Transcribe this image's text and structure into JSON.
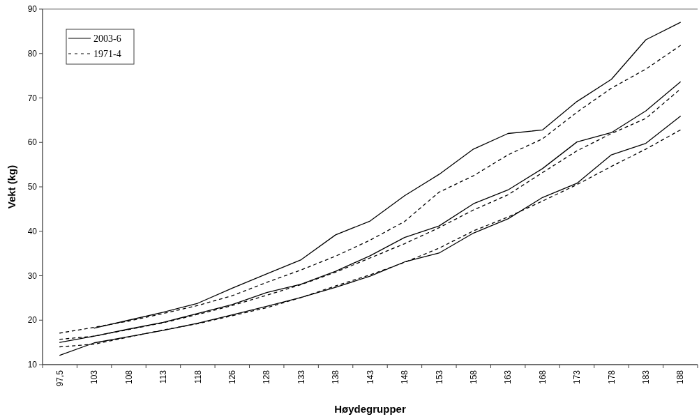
{
  "chart_data": {
    "type": "line",
    "xlabel": "Høydegrupper",
    "ylabel": "Vekt (kg)",
    "categories": [
      "97,5",
      "103",
      "108",
      "113",
      "118",
      "126",
      "128",
      "133",
      "138",
      "143",
      "148",
      "153",
      "158",
      "163",
      "168",
      "173",
      "178",
      "183",
      "188"
    ],
    "ylim": [
      10,
      90
    ],
    "yticks": [
      10,
      20,
      30,
      40,
      50,
      60,
      70,
      80,
      90
    ],
    "grid": false,
    "legend": "top left",
    "series": [
      {
        "name": "2003-6",
        "color": "#000000",
        "line_style": "solid",
        "values": [
          null,
          18.2,
          20,
          21.8,
          23.8,
          27.2,
          30.4,
          33.6,
          39.2,
          42.3,
          48,
          52.8,
          58.5,
          62,
          62.8,
          69.2,
          74.2,
          83.1,
          87
        ]
      },
      {
        "name": "1971-4",
        "color": "#000000",
        "line_style": "dashed",
        "values": [
          17.1,
          18.4,
          19.8,
          21.5,
          23.3,
          25.5,
          28.5,
          31.3,
          34.4,
          38,
          42.2,
          48.8,
          52.5,
          57.2,
          60.8,
          66.8,
          72.2,
          76.5,
          81.8
        ]
      },
      {
        "color": "#000000",
        "line_style": "solid",
        "values": [
          15,
          16.4,
          18,
          19.5,
          21.5,
          23.5,
          26.2,
          28.1,
          31,
          34.5,
          38.6,
          41.2,
          46.2,
          49.3,
          54.1,
          60.1,
          62.2,
          67.1,
          73.6
        ]
      },
      {
        "color": "#000000",
        "line_style": "dashed",
        "values": [
          15.7,
          16.4,
          17.9,
          19.4,
          21.3,
          23.3,
          25.6,
          28,
          30.8,
          34,
          37.2,
          40.8,
          44.8,
          48.2,
          53.2,
          58.1,
          62,
          65.4,
          72
        ]
      },
      {
        "color": "#000000",
        "line_style": "solid",
        "values": [
          12.1,
          14.9,
          16.3,
          17.7,
          19.3,
          21.2,
          23.1,
          25.1,
          27.4,
          29.9,
          33.1,
          35.1,
          39.6,
          42.8,
          47.6,
          50.8,
          57.2,
          59.8,
          65.9
        ]
      },
      {
        "color": "#000000",
        "line_style": "dashed",
        "values": [
          14,
          14.6,
          16.2,
          17.8,
          19.2,
          21,
          22.8,
          25.1,
          27.7,
          30.2,
          33,
          36.2,
          40.1,
          43.2,
          46.8,
          50.5,
          54.6,
          58.5,
          62.8
        ]
      }
    ]
  }
}
